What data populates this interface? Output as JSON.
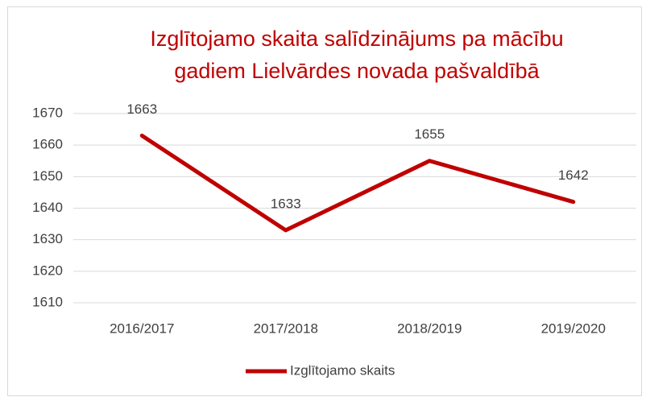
{
  "chart_data": {
    "type": "line",
    "title": [
      "Izglītojamo skaita salīdzinājums pa mācību",
      "gadiem Lielvārdes novada pašvaldībā"
    ],
    "categories": [
      "2016/2017",
      "2017/2018",
      "2018/2019",
      "2019/2020"
    ],
    "series": [
      {
        "name": "Izglītojamo skaits",
        "color": "#c00000",
        "values": [
          1663,
          1633,
          1655,
          1642
        ]
      }
    ],
    "ylim": [
      1610,
      1670
    ],
    "yticks": [
      1610,
      1620,
      1630,
      1640,
      1650,
      1660,
      1670
    ],
    "grid": true,
    "legend": "bottom",
    "data_labels": true
  }
}
